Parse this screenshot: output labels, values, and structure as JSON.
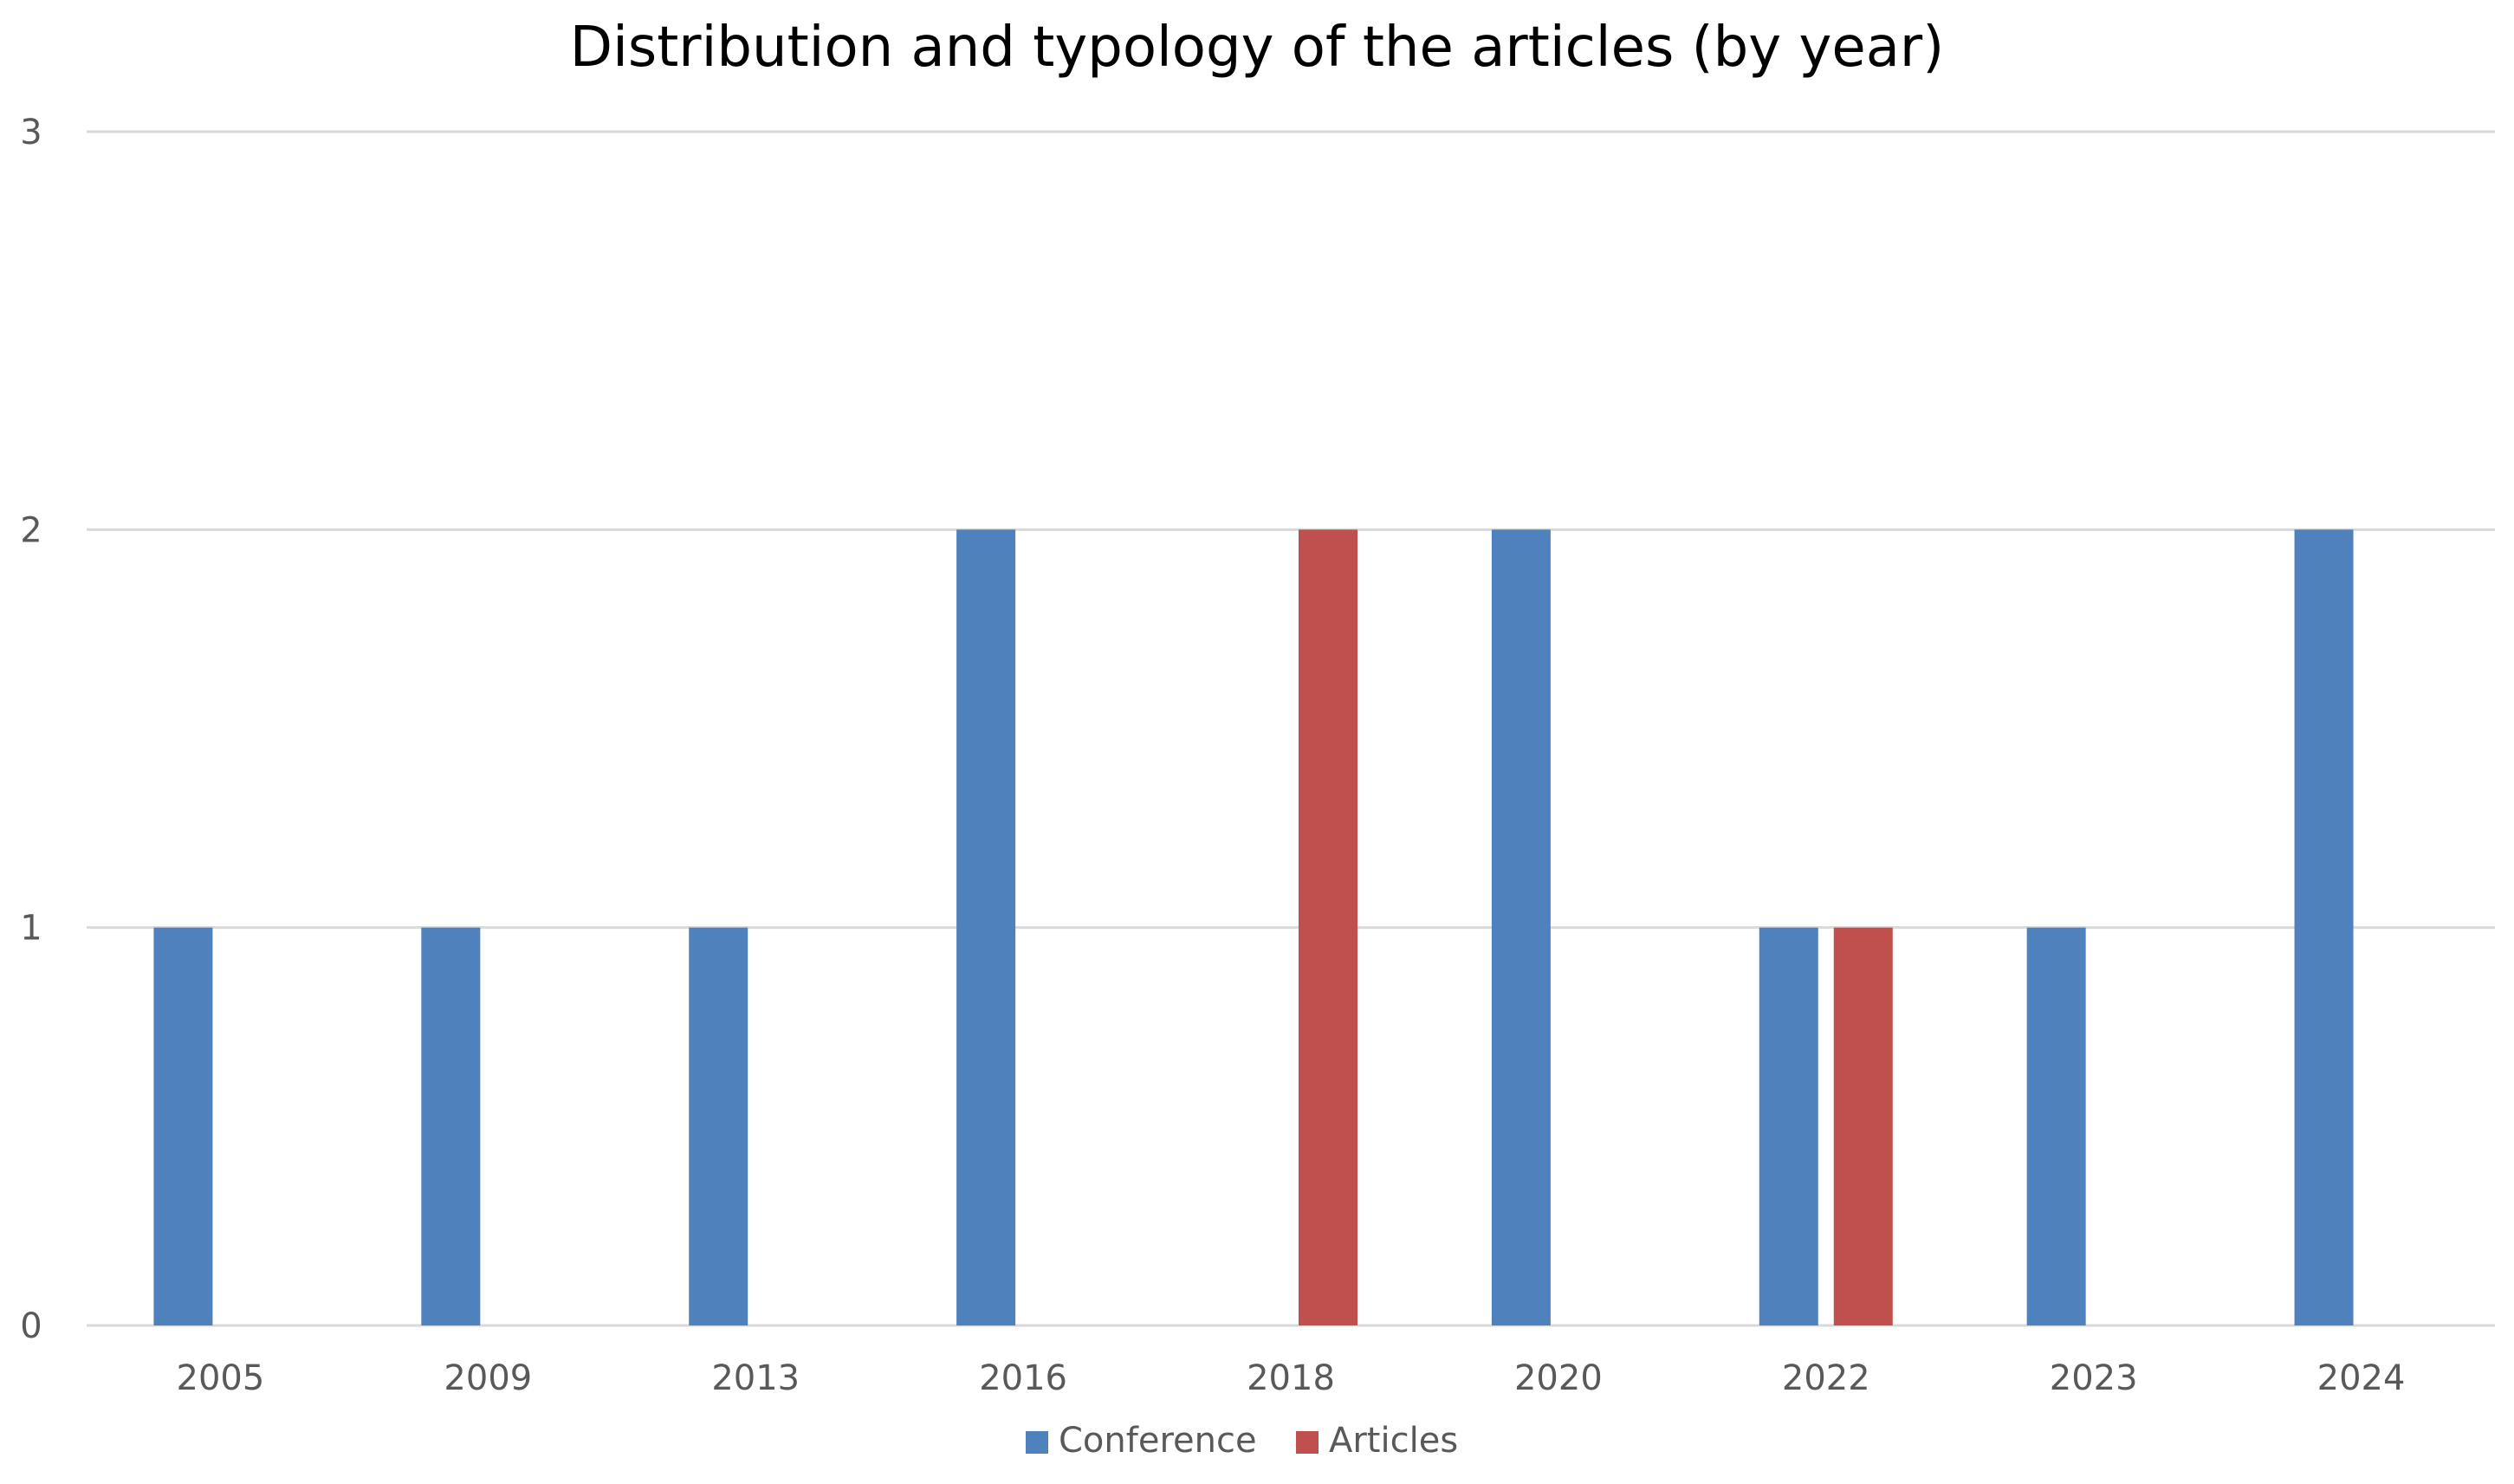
{
  "chart_data": {
    "type": "bar",
    "title": "Distribution and typology of the articles (by year)",
    "categories": [
      "2005",
      "2009",
      "2013",
      "2016",
      "2018",
      "2020",
      "2022",
      "2023",
      "2024"
    ],
    "series": [
      {
        "name": "Conference",
        "color": "#4f81bd",
        "values": [
          1,
          1,
          1,
          2,
          0,
          2,
          1,
          1,
          2
        ]
      },
      {
        "name": "Articles",
        "color": "#c0504d",
        "values": [
          0,
          0,
          0,
          0,
          2,
          0,
          1,
          0,
          0
        ]
      }
    ],
    "yticks": [
      "0",
      "1",
      "2",
      "3"
    ],
    "ylim": [
      0,
      3
    ],
    "grid": true,
    "legend_position": "bottom"
  }
}
